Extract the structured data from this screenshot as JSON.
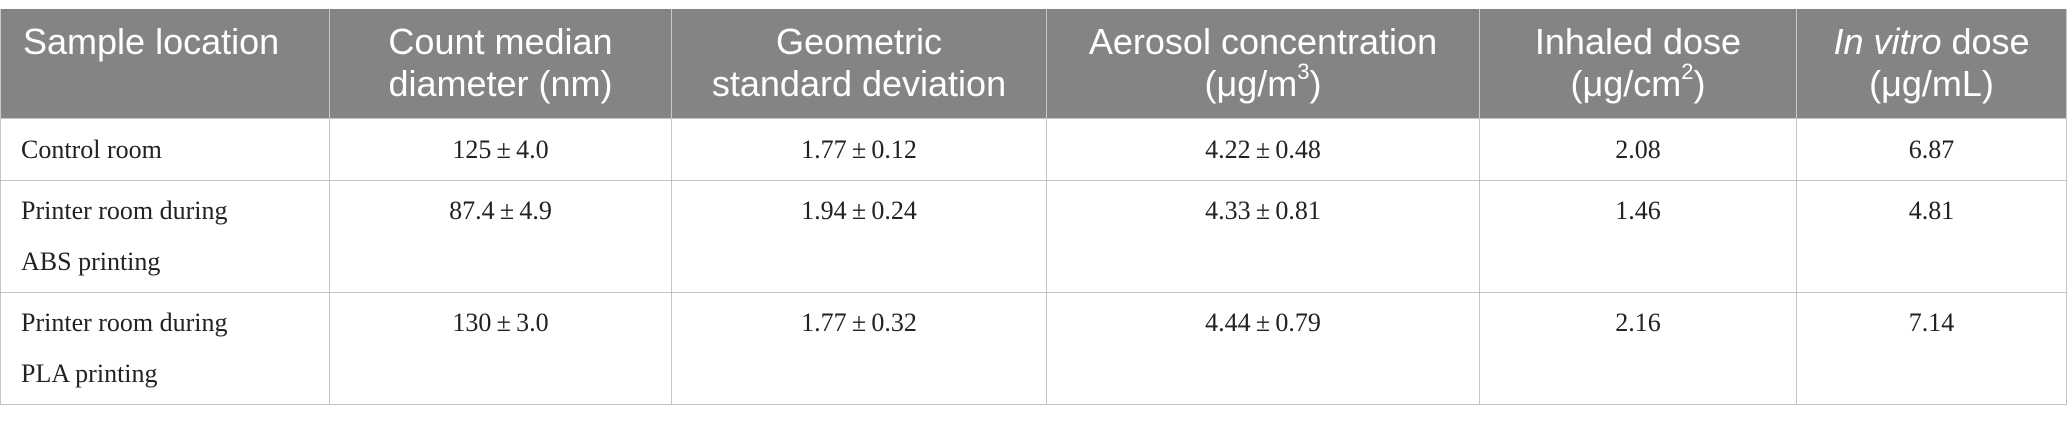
{
  "table": {
    "headers": {
      "sample_location": "Sample location",
      "cmd_line1": "Count median",
      "cmd_line2": "diameter (nm)",
      "gsd_line1": "Geometric",
      "gsd_line2": "standard deviation",
      "aerosol_line1": "Aerosol concentration",
      "aerosol_unit_base": "(μg/m",
      "aerosol_unit_sup": "3",
      "aerosol_unit_end": ")",
      "inhaled_line1": "Inhaled dose",
      "inhaled_unit_base": "(μg/cm",
      "inhaled_unit_sup": "2",
      "inhaled_unit_end": ")",
      "invitro_italic": "In vitro",
      "invitro_rest": " dose",
      "invitro_unit": "(μg/mL)"
    },
    "rows": [
      {
        "location_line1": "Control room",
        "location_line2": "",
        "cmd": "125 ± 4.0",
        "gsd": "1.77 ± 0.12",
        "aerosol": "4.22 ± 0.48",
        "inhaled": "2.08",
        "invitro": "6.87"
      },
      {
        "location_line1": "Printer room during",
        "location_line2": "ABS printing",
        "cmd": "87.4 ± 4.9",
        "gsd": "1.94 ± 0.24",
        "aerosol": "4.33 ± 0.81",
        "inhaled": "1.46",
        "invitro": "4.81"
      },
      {
        "location_line1": "Printer room during",
        "location_line2": "PLA printing",
        "cmd": "130 ± 3.0",
        "gsd": "1.77 ± 0.32",
        "aerosol": "4.44 ± 0.79",
        "inhaled": "2.16",
        "invitro": "7.14"
      }
    ],
    "colors": {
      "header_bg": "#838583",
      "header_text": "#ffffff",
      "grid": "#c4c4c4",
      "body_text": "#222222"
    }
  }
}
